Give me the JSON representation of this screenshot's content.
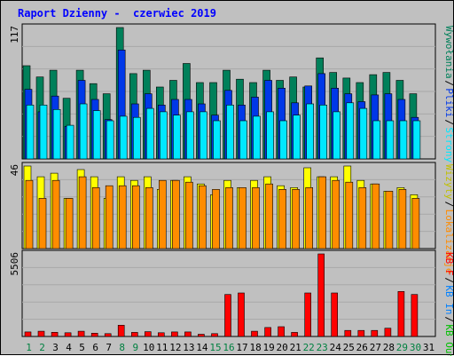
{
  "colors": {
    "background": "#c0c0c0",
    "plot_background": "#c0c0c0",
    "title": "#0000ff",
    "hits": "#00805a",
    "files": "#0038e8",
    "pages": "#00e8ff",
    "visits": "#ffff00",
    "sites": "#ff8c00",
    "kbf": "#ff0000",
    "kbin": "#0080ff",
    "kbout": "#00c000",
    "weekend_label": "#008040",
    "weekday_label": "#000000"
  },
  "chart_data": {
    "type": "bar",
    "title": "Raport Dzienny -  czerwiec 2019",
    "categories": [
      "1",
      "2",
      "3",
      "4",
      "5",
      "6",
      "7",
      "8",
      "9",
      "10",
      "11",
      "12",
      "13",
      "14",
      "15",
      "16",
      "17",
      "18",
      "19",
      "20",
      "21",
      "22",
      "23",
      "24",
      "25",
      "26",
      "27",
      "28",
      "29",
      "30",
      "31"
    ],
    "weekend_days": [
      1,
      2,
      8,
      9,
      15,
      16,
      22,
      23,
      29,
      30
    ],
    "panels": [
      {
        "ymax_label": "117",
        "ymax": 117,
        "right_labels": [
          "Wywołania",
          "Pliki",
          "Strony"
        ],
        "right_colors": [
          "#00805a",
          "#0038e8",
          "#00e8ff"
        ],
        "series": [
          {
            "name": "Wywołania",
            "color": "#00805a",
            "values": [
              83,
              73,
              79,
              54,
              79,
              67,
              58,
              117,
              76,
              79,
              64,
              70,
              85,
              68,
              68,
              79,
              71,
              68,
              79,
              70,
              73,
              64,
              90,
              77,
              72,
              68,
              75,
              77,
              70,
              58,
              0
            ]
          },
          {
            "name": "Pliki",
            "color": "#0038e8",
            "values": [
              62,
              42,
              56,
              29,
              70,
              53,
              35,
              97,
              49,
              58,
              48,
              53,
              53,
              49,
              39,
              61,
              48,
              55,
              70,
              63,
              50,
              65,
              76,
              63,
              58,
              51,
              57,
              58,
              53,
              37,
              0
            ]
          },
          {
            "name": "Strony",
            "color": "#00e8ff",
            "values": [
              48,
              48,
              44,
              30,
              49,
              43,
              34,
              38,
              37,
              45,
              42,
              39,
              42,
              42,
              34,
              48,
              34,
              38,
              42,
              34,
              39,
              49,
              48,
              42,
              50,
              45,
              34,
              34,
              34,
              34,
              0
            ]
          }
        ]
      },
      {
        "ymax_label": "46",
        "ymax": 46,
        "right_labels": [
          "Wizyty",
          "Lokalizacje"
        ],
        "right_colors": [
          "#c0c000",
          "#ff8c00"
        ],
        "series": [
          {
            "name": "Wizyty",
            "color": "#ffff00",
            "values": [
              46,
              40,
              42,
              28,
              44,
              40,
              28,
              40,
              38,
              40,
              33,
              38,
              40,
              36,
              30,
              38,
              34,
              38,
              40,
              35,
              34,
              45,
              40,
              40,
              46,
              38,
              36,
              32,
              34,
              30,
              0
            ]
          },
          {
            "name": "Lokalizacje",
            "color": "#ff8c00",
            "values": [
              38,
              28,
              38,
              28,
              40,
              34,
              35,
              35,
              35,
              34,
              38,
              38,
              37,
              35,
              33,
              34,
              34,
              34,
              36,
              33,
              33,
              34,
              40,
              38,
              37,
              34,
              36,
              32,
              33,
              28,
              0
            ]
          }
        ]
      },
      {
        "ymax_label": "5506",
        "ymax": 5506,
        "right_labels": [
          "KB F",
          "KB In",
          "KB Out"
        ],
        "right_colors": [
          "#ff0000",
          "#0080ff",
          "#00c000"
        ],
        "series": [
          {
            "name": "KB F",
            "color": "#ff0000",
            "values": [
              300,
              350,
              280,
              250,
              350,
              220,
              190,
              750,
              270,
              320,
              250,
              300,
              300,
              150,
              190,
              2800,
              2900,
              350,
              600,
              650,
              270,
              2900,
              5506,
              2900,
              400,
              400,
              400,
              550,
              3000,
              2800,
              0
            ]
          }
        ]
      }
    ]
  }
}
